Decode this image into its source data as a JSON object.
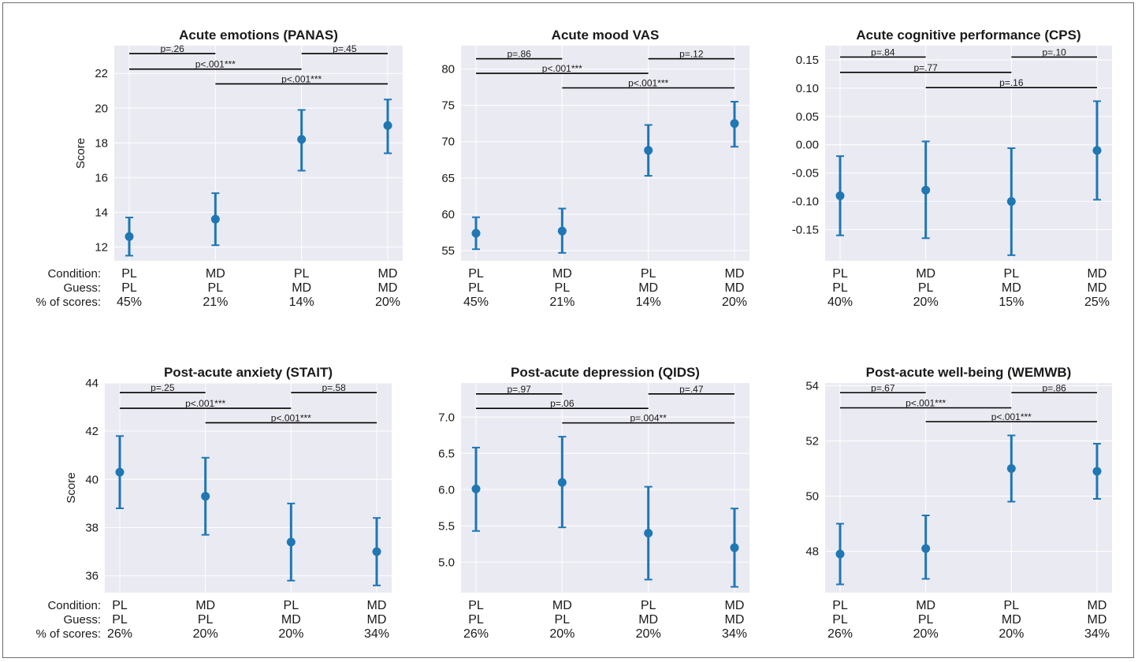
{
  "figure": {
    "row_labels": [
      "Condition:",
      "Guess:",
      "% of scores:"
    ],
    "colors": {
      "background": "#eaeaf2",
      "grid": "#ffffff",
      "marker": "#1f77b4",
      "bracket": "#000000"
    }
  },
  "chart_data": [
    {
      "type": "errorbar",
      "title": "Acute emotions (PANAS)",
      "ylabel": "Score",
      "ylim": [
        11.2,
        23.6
      ],
      "yticks": [
        12,
        14,
        16,
        18,
        20,
        22
      ],
      "condition": [
        "PL",
        "MD",
        "PL",
        "MD"
      ],
      "guess": [
        "PL",
        "PL",
        "MD",
        "MD"
      ],
      "percent": [
        "45%",
        "21%",
        "14%",
        "20%"
      ],
      "means": [
        12.6,
        13.6,
        18.2,
        19.0
      ],
      "lower": [
        11.5,
        12.1,
        16.4,
        17.4
      ],
      "upper": [
        13.7,
        15.1,
        19.9,
        20.5
      ],
      "comparisons": [
        {
          "from": 0,
          "to": 1,
          "label": "p=.26",
          "y": 23.15
        },
        {
          "from": 2,
          "to": 3,
          "label": "p=.45",
          "y": 23.15
        },
        {
          "from": 0,
          "to": 2,
          "label": "p<.001***",
          "y": 22.25
        },
        {
          "from": 1,
          "to": 3,
          "label": "p<.001***",
          "y": 21.4
        }
      ]
    },
    {
      "type": "errorbar",
      "title": "Acute mood VAS",
      "ylabel": "",
      "ylim": [
        53.6,
        83.2
      ],
      "yticks": [
        55,
        60,
        65,
        70,
        75,
        80
      ],
      "condition": [
        "PL",
        "MD",
        "PL",
        "MD"
      ],
      "guess": [
        "PL",
        "PL",
        "MD",
        "MD"
      ],
      "percent": [
        "45%",
        "21%",
        "14%",
        "20%"
      ],
      "means": [
        57.4,
        57.7,
        68.8,
        72.5
      ],
      "lower": [
        55.2,
        54.7,
        65.3,
        69.3
      ],
      "upper": [
        59.6,
        60.8,
        72.3,
        75.5
      ],
      "comparisons": [
        {
          "from": 0,
          "to": 1,
          "label": "p=.86",
          "y": 81.4
        },
        {
          "from": 2,
          "to": 3,
          "label": "p=.12",
          "y": 81.4
        },
        {
          "from": 0,
          "to": 2,
          "label": "p<.001***",
          "y": 79.4
        },
        {
          "from": 1,
          "to": 3,
          "label": "p<.001***",
          "y": 77.4
        }
      ]
    },
    {
      "type": "errorbar",
      "title": "Acute cognitive performance (CPS)",
      "ylabel": "",
      "ylim": [
        -0.205,
        0.175
      ],
      "yticks": [
        -0.15,
        -0.1,
        -0.05,
        0.0,
        0.05,
        0.1,
        0.15
      ],
      "tick_decimals": 2,
      "condition": [
        "PL",
        "MD",
        "PL",
        "MD"
      ],
      "guess": [
        "PL",
        "PL",
        "MD",
        "MD"
      ],
      "percent": [
        "40%",
        "20%",
        "15%",
        "25%"
      ],
      "means": [
        -0.09,
        -0.08,
        -0.1,
        -0.01
      ],
      "lower": [
        -0.16,
        -0.165,
        -0.195,
        -0.097
      ],
      "upper": [
        -0.02,
        0.006,
        -0.006,
        0.077
      ],
      "comparisons": [
        {
          "from": 0,
          "to": 1,
          "label": "p=.84",
          "y": 0.155
        },
        {
          "from": 2,
          "to": 3,
          "label": "p=.10",
          "y": 0.155
        },
        {
          "from": 0,
          "to": 2,
          "label": "p=.77",
          "y": 0.128
        },
        {
          "from": 1,
          "to": 3,
          "label": "p=.16",
          "y": 0.101
        }
      ]
    },
    {
      "type": "errorbar",
      "title": "Post-acute anxiety (STAIT)",
      "ylabel": "Score",
      "ylim": [
        35.3,
        44.0
      ],
      "yticks": [
        36,
        38,
        40,
        42,
        44
      ],
      "condition": [
        "PL",
        "MD",
        "PL",
        "MD"
      ],
      "guess": [
        "PL",
        "PL",
        "MD",
        "MD"
      ],
      "percent": [
        "26%",
        "20%",
        "20%",
        "34%"
      ],
      "means": [
        40.3,
        39.3,
        37.4,
        37.0
      ],
      "lower": [
        38.8,
        37.7,
        35.8,
        35.6
      ],
      "upper": [
        41.8,
        40.9,
        39.0,
        38.4
      ],
      "comparisons": [
        {
          "from": 0,
          "to": 1,
          "label": "p=.25",
          "y": 43.6
        },
        {
          "from": 2,
          "to": 3,
          "label": "p=.58",
          "y": 43.6
        },
        {
          "from": 0,
          "to": 2,
          "label": "p<.001***",
          "y": 42.95
        },
        {
          "from": 1,
          "to": 3,
          "label": "p<.001***",
          "y": 42.35
        }
      ]
    },
    {
      "type": "errorbar",
      "title": "Post-acute depression (QIDS)",
      "ylabel": "",
      "ylim": [
        4.58,
        7.47
      ],
      "yticks": [
        5.0,
        5.5,
        6.0,
        6.5,
        7.0
      ],
      "tick_decimals": 1,
      "condition": [
        "PL",
        "MD",
        "PL",
        "MD"
      ],
      "guess": [
        "PL",
        "PL",
        "MD",
        "MD"
      ],
      "percent": [
        "26%",
        "20%",
        "20%",
        "34%"
      ],
      "means": [
        6.01,
        6.1,
        5.4,
        5.2
      ],
      "lower": [
        5.43,
        5.48,
        4.76,
        4.66
      ],
      "upper": [
        6.58,
        6.73,
        6.04,
        5.74
      ],
      "comparisons": [
        {
          "from": 0,
          "to": 1,
          "label": "p=.97",
          "y": 7.32
        },
        {
          "from": 2,
          "to": 3,
          "label": "p=.47",
          "y": 7.32
        },
        {
          "from": 0,
          "to": 2,
          "label": "p=.06",
          "y": 7.12
        },
        {
          "from": 1,
          "to": 3,
          "label": "p=.004**",
          "y": 6.92
        }
      ]
    },
    {
      "type": "errorbar",
      "title": "Post-acute well-being (WEMWB)",
      "ylabel": "",
      "ylim": [
        46.5,
        54.1
      ],
      "yticks": [
        48,
        50,
        52,
        54
      ],
      "condition": [
        "PL",
        "MD",
        "PL",
        "MD"
      ],
      "guess": [
        "PL",
        "PL",
        "MD",
        "MD"
      ],
      "percent": [
        "26%",
        "20%",
        "20%",
        "34%"
      ],
      "means": [
        47.9,
        48.1,
        51.0,
        50.9
      ],
      "lower": [
        46.8,
        47.0,
        49.8,
        49.9
      ],
      "upper": [
        49.0,
        49.3,
        52.2,
        51.9
      ],
      "comparisons": [
        {
          "from": 0,
          "to": 1,
          "label": "p=.67",
          "y": 53.75
        },
        {
          "from": 2,
          "to": 3,
          "label": "p=.86",
          "y": 53.75
        },
        {
          "from": 0,
          "to": 2,
          "label": "p<.001***",
          "y": 53.2
        },
        {
          "from": 1,
          "to": 3,
          "label": "p<.001***",
          "y": 52.7
        }
      ]
    }
  ]
}
